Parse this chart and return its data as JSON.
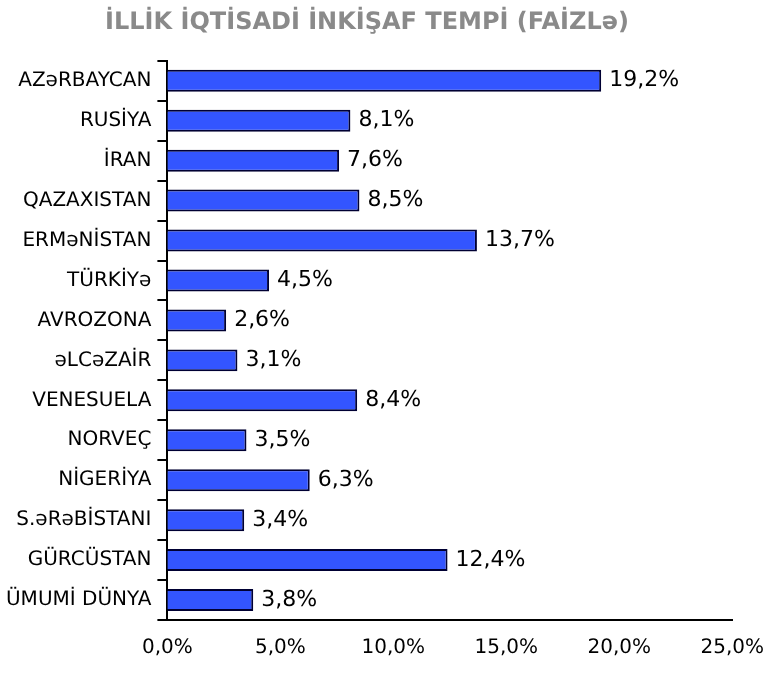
{
  "chart_data": {
    "type": "bar",
    "orientation": "horizontal",
    "title": "İLLİK İQTİSADİ İNKİŞAF TEMPİ (FAİZLə)",
    "categories": [
      "AZəRBAYCAN",
      "RUSİYA",
      "İRAN",
      "QAZAXISTAN",
      "ERMəNİSTAN",
      "TÜRKİYə",
      "AVROZONA",
      "əLCəZAİR",
      "VENESUELA",
      "NORVEÇ",
      "NİGERİYA",
      "S.əRəBİSTANI",
      "GÜRCÜSTAN",
      "ÜMUMİ DÜNYA"
    ],
    "values": [
      19.2,
      8.1,
      7.6,
      8.5,
      13.7,
      4.5,
      2.6,
      3.1,
      8.4,
      3.5,
      6.3,
      3.4,
      12.4,
      3.8
    ],
    "value_labels": [
      "19,2%",
      "8,1%",
      "7,6%",
      "8,5%",
      "13,7%",
      "4,5%",
      "2,6%",
      "3,1%",
      "8,4%",
      "3,5%",
      "6,3%",
      "3,4%",
      "12,4%",
      "3,8%"
    ],
    "color": "#3355ff",
    "xlim": [
      0,
      25
    ],
    "xticks": [
      {
        "value": 0,
        "label": "0,0%"
      },
      {
        "value": 5,
        "label": "5,0%"
      },
      {
        "value": 10,
        "label": "10,0%"
      },
      {
        "value": 15,
        "label": "15,0%"
      },
      {
        "value": 20,
        "label": "20,0%"
      },
      {
        "value": 25,
        "label": "25,0%"
      }
    ],
    "grid": false,
    "legend": false
  }
}
